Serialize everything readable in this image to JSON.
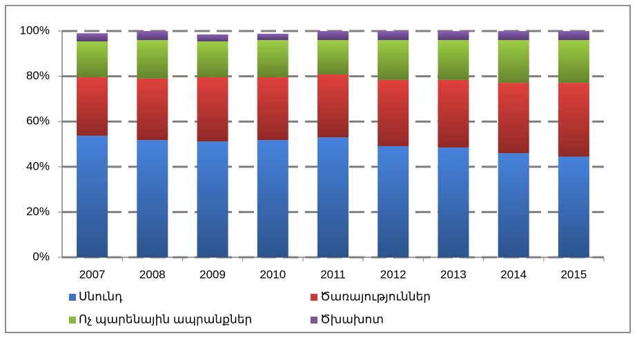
{
  "chart_data": {
    "type": "stacked_bar",
    "categories": [
      "2007",
      "2008",
      "2009",
      "2010",
      "2011",
      "2012",
      "2013",
      "2014",
      "2015"
    ],
    "series": [
      {
        "name": "Սնունդ",
        "color": "#3f74c4",
        "values": [
          53.7,
          51.8,
          51.2,
          51.8,
          53.0,
          49.1,
          48.5,
          46.0,
          44.5
        ]
      },
      {
        "name": "Ծառայություններ",
        "color": "#c83a36",
        "values": [
          25.9,
          27.2,
          28.4,
          27.8,
          27.8,
          29.3,
          29.9,
          31.1,
          32.6
        ]
      },
      {
        "name": "Ոչ պարենային ապրանքներ",
        "color": "#8cb83e",
        "values": [
          15.8,
          17.0,
          15.8,
          16.4,
          15.2,
          17.6,
          17.6,
          18.9,
          18.9
        ]
      },
      {
        "name": "Ծխախոտ",
        "color": "#7a55a0",
        "values": [
          3.6,
          4.0,
          3.1,
          2.8,
          4.0,
          4.0,
          4.0,
          4.0,
          4.0
        ]
      }
    ],
    "ylim": [
      0,
      100
    ],
    "yticks": [
      {
        "value": 0,
        "label": "0%"
      },
      {
        "value": 20,
        "label": "20%"
      },
      {
        "value": 40,
        "label": "40%"
      },
      {
        "value": 60,
        "label": "60%"
      },
      {
        "value": 80,
        "label": "80%"
      },
      {
        "value": 100,
        "label": "100%"
      }
    ],
    "grid": true
  }
}
